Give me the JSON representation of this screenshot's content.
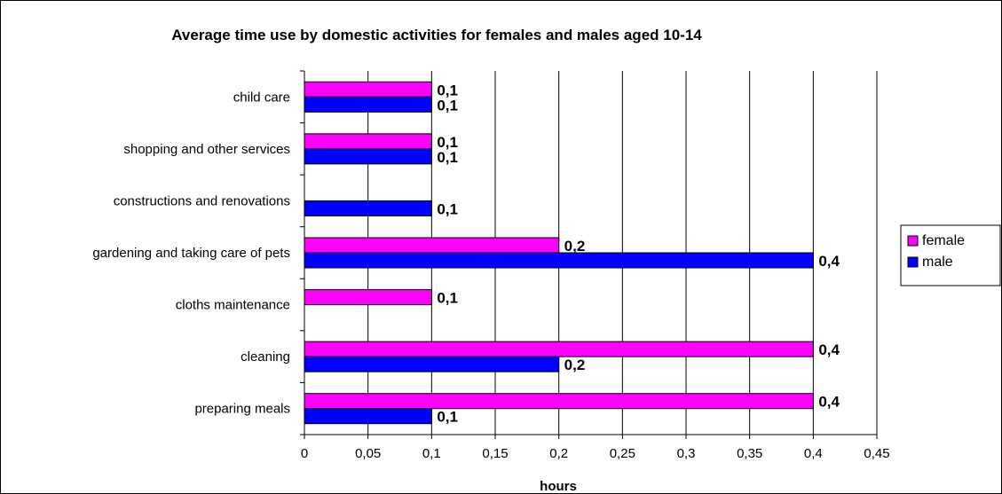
{
  "chart_data": {
    "type": "bar",
    "orientation": "horizontal",
    "title": "Average time use by domestic activities for females and males aged 10-14",
    "xlabel": "hours",
    "ylabel": "",
    "xlim": [
      0,
      0.45
    ],
    "ticks": [
      0,
      0.05,
      0.1,
      0.15,
      0.2,
      0.25,
      0.3,
      0.35,
      0.4,
      0.45
    ],
    "tick_labels": [
      "0",
      "0,05",
      "0,1",
      "0,15",
      "0,2",
      "0,25",
      "0,3",
      "0,35",
      "0,4",
      "0,45"
    ],
    "grid": "vertical",
    "legend_position": "right",
    "categories": [
      "child care",
      "shopping and other services",
      "constructions and renovations",
      "gardening and taking care of pets",
      "cloths maintenance",
      "cleaning",
      "preparing meals"
    ],
    "series": [
      {
        "name": "female",
        "color": "#ff00ff",
        "values": [
          0.1,
          0.1,
          null,
          0.2,
          0.1,
          0.4,
          0.4
        ],
        "labels": [
          "0,1",
          "0,1",
          "",
          "0,2",
          "0,1",
          "0,4",
          "0,4"
        ]
      },
      {
        "name": "male",
        "color": "#0000ff",
        "values": [
          0.1,
          0.1,
          0.1,
          0.4,
          null,
          0.2,
          0.1
        ],
        "labels": [
          "0,1",
          "0,1",
          "0,1",
          "0,4",
          "",
          "0,2",
          "0,1"
        ]
      }
    ]
  }
}
